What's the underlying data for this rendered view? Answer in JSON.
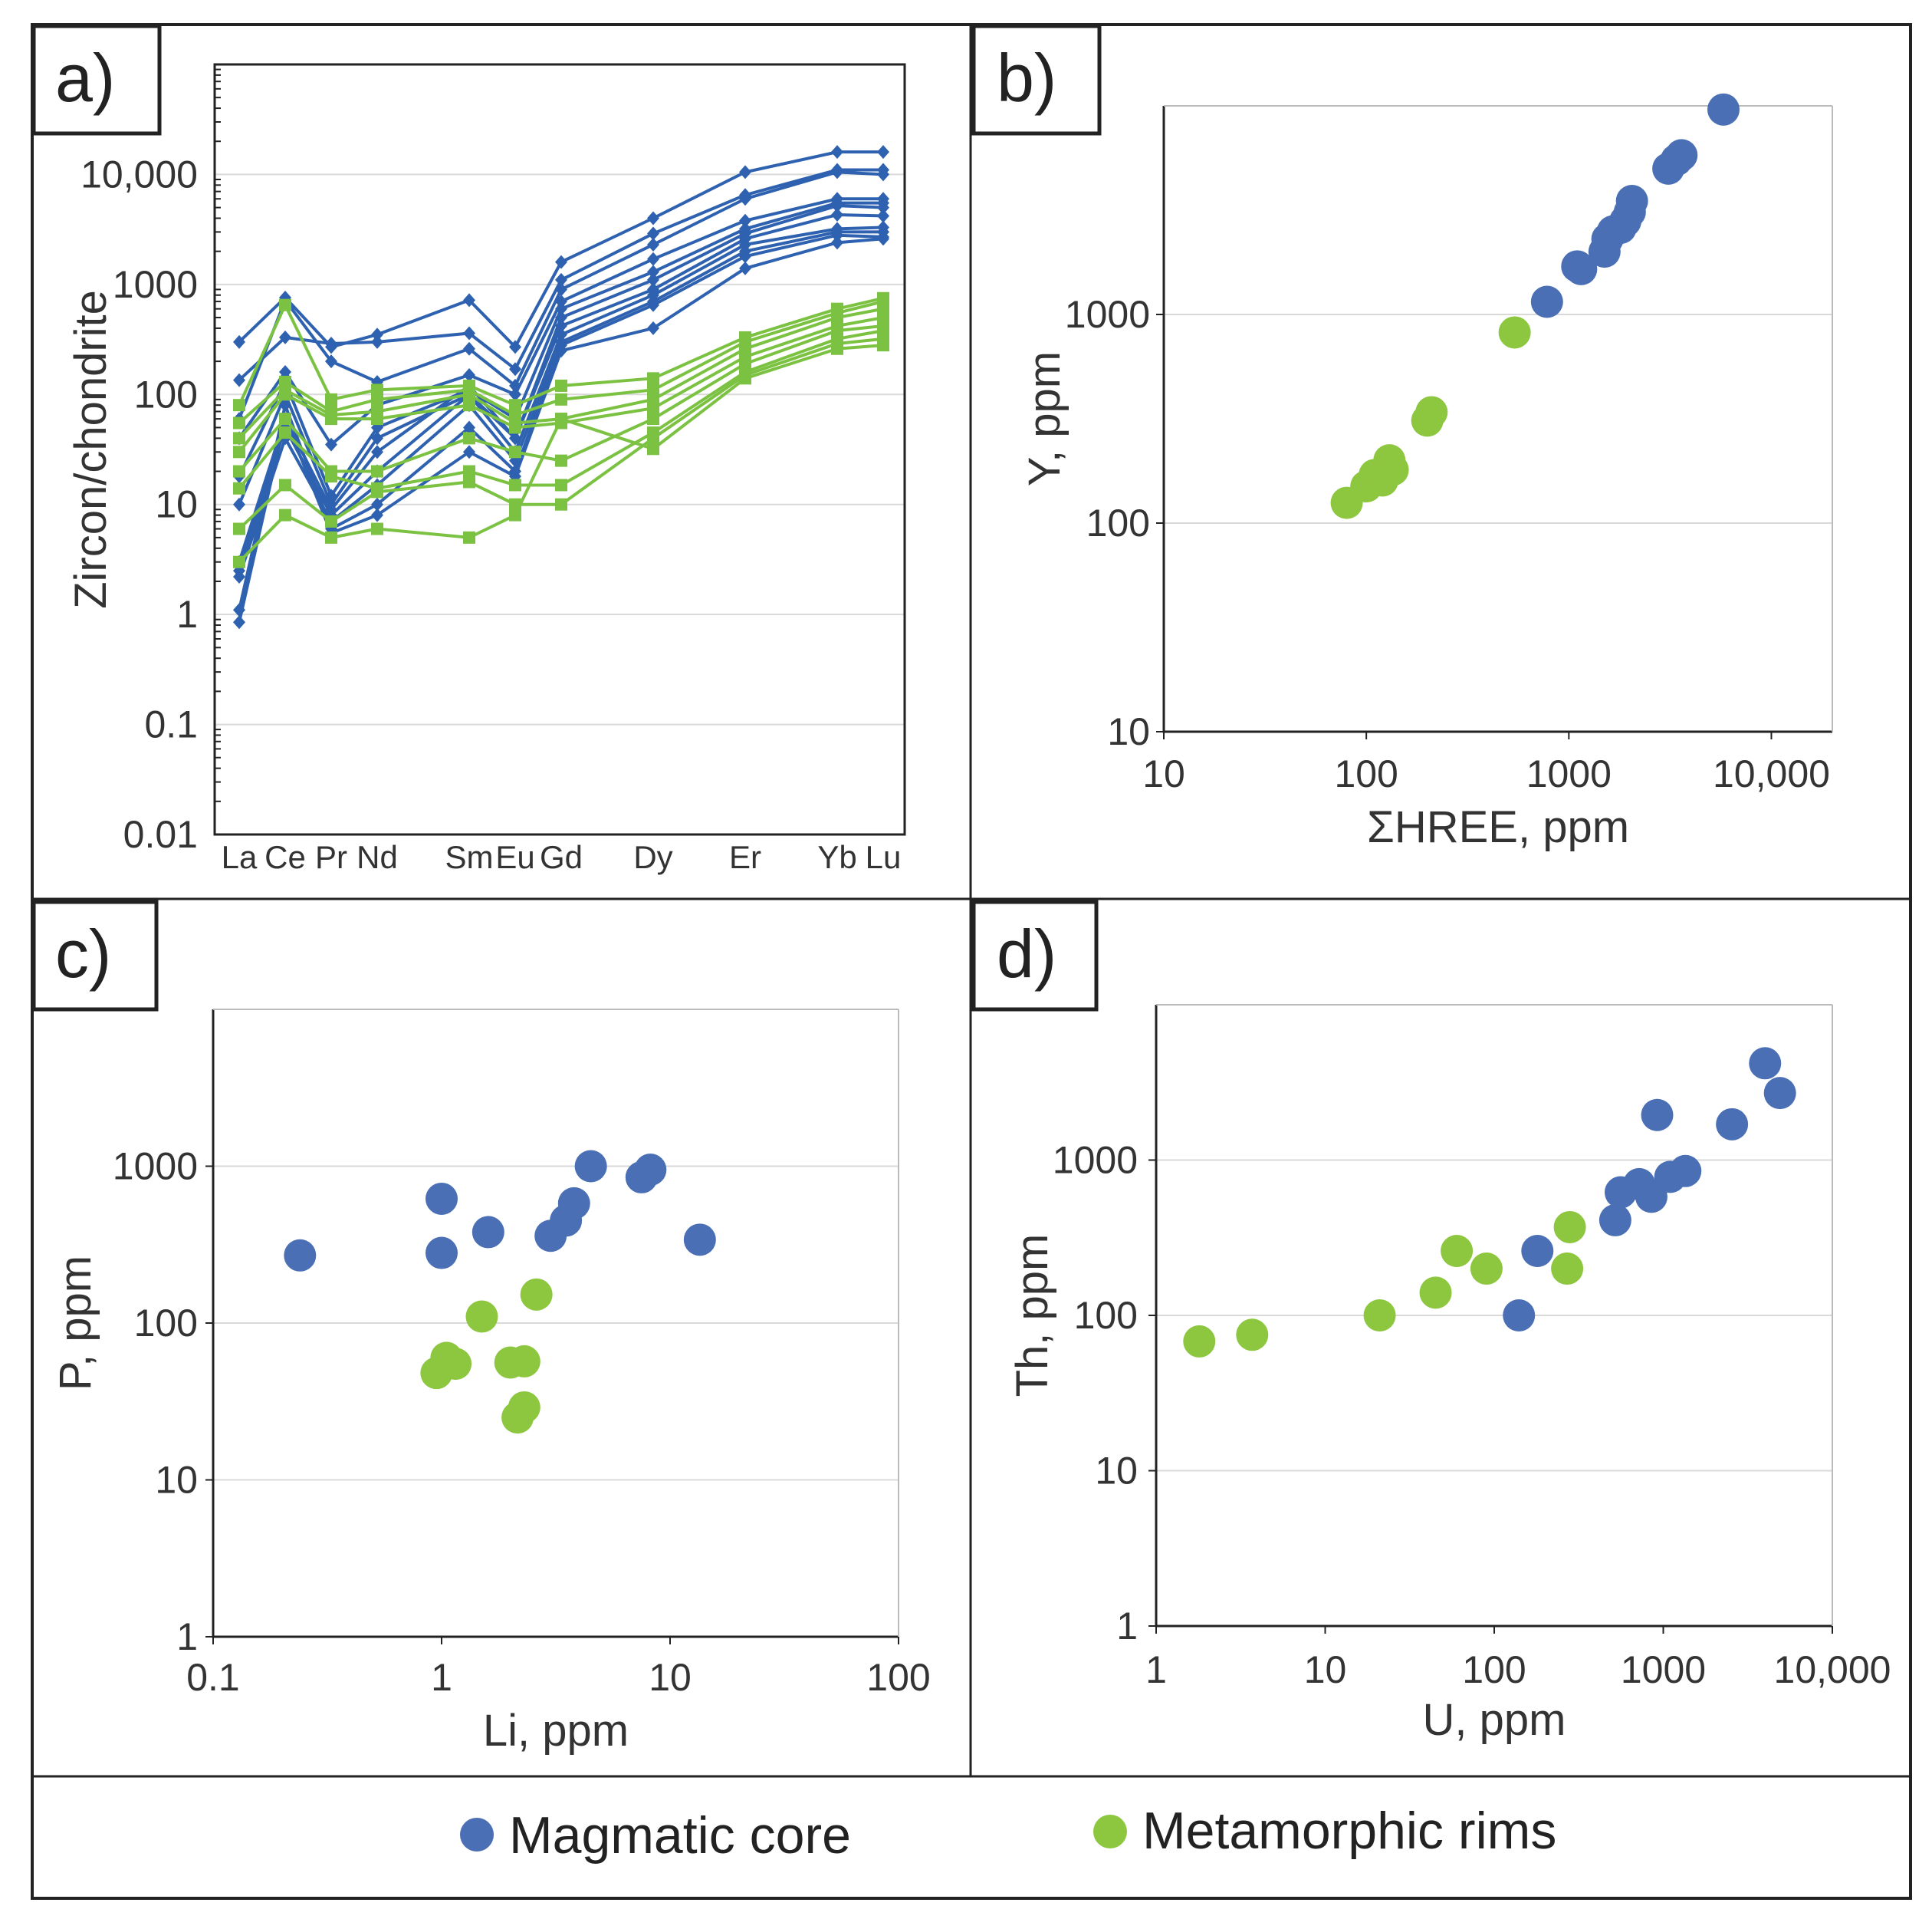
{
  "colors": {
    "magmatic": "#4a6fb5",
    "metamorphic": "#8dc63f",
    "magmatic_line": "#2e62b0",
    "metamorphic_line": "#7cc242"
  },
  "legend": {
    "magmatic": "Magmatic core",
    "metamorphic": "Metamorphic rims"
  },
  "chart_data": [
    {
      "id": "a",
      "panel_label": "a)",
      "type": "line",
      "ylabel": "Zircon/chondrite",
      "xlabel": "",
      "yscale": "log",
      "ylim": [
        0.01,
        100000
      ],
      "yticks": [
        0.01,
        0.1,
        1,
        10,
        100,
        1000,
        10000
      ],
      "ytick_labels": [
        "0.01",
        "0.1",
        "1",
        "10",
        "100",
        "1000",
        "10,000"
      ],
      "categories": [
        "La",
        "Ce",
        "Pr",
        "Nd",
        "Sm",
        "Eu",
        "Gd",
        "Dy",
        "Er",
        "Yb",
        "Lu"
      ],
      "category_positions": [
        0,
        1,
        2,
        3,
        5,
        6,
        7,
        9,
        11,
        13,
        14
      ],
      "series": [
        {
          "group": "magmatic",
          "values": [
            300,
            760,
            270,
            350,
            720,
            270,
            1600,
            4000,
            10500,
            16000,
            16000
          ]
        },
        {
          "group": "magmatic",
          "values": [
            135,
            330,
            290,
            300,
            360,
            170,
            1100,
            2900,
            6500,
            11000,
            11000
          ]
        },
        {
          "group": "magmatic",
          "values": [
            60,
            720,
            200,
            130,
            260,
            120,
            900,
            2300,
            6000,
            10500,
            10000
          ]
        },
        {
          "group": "magmatic",
          "values": [
            40,
            160,
            35,
            80,
            150,
            100,
            700,
            1700,
            3800,
            6000,
            6000
          ]
        },
        {
          "group": "magmatic",
          "values": [
            18,
            130,
            12,
            50,
            110,
            60,
            600,
            1300,
            3200,
            5500,
            5500
          ]
        },
        {
          "group": "magmatic",
          "values": [
            10,
            100,
            10,
            40,
            100,
            40,
            500,
            1100,
            2900,
            5200,
            5000
          ]
        },
        {
          "group": "magmatic",
          "values": [
            3,
            60,
            9,
            30,
            120,
            40,
            420,
            900,
            2600,
            4300,
            4200
          ]
        },
        {
          "group": "magmatic",
          "values": [
            2.5,
            50,
            8,
            20,
            100,
            30,
            350,
            800,
            2300,
            3200,
            3300
          ]
        },
        {
          "group": "magmatic",
          "values": [
            2.2,
            40,
            7,
            15,
            80,
            25,
            300,
            700,
            2000,
            3000,
            3000
          ]
        },
        {
          "group": "magmatic",
          "values": [
            1.1,
            80,
            6,
            10,
            50,
            20,
            280,
            650,
            1800,
            2800,
            2700
          ]
        },
        {
          "group": "magmatic",
          "values": [
            0.85,
            60,
            5.5,
            8,
            30,
            18,
            250,
            400,
            1400,
            2400,
            2600
          ]
        },
        {
          "group": "metamorphic",
          "values": [
            80,
            650,
            90,
            110,
            120,
            80,
            120,
            140,
            330,
            600,
            750
          ]
        },
        {
          "group": "metamorphic",
          "values": [
            55,
            130,
            70,
            90,
            110,
            65,
            90,
            110,
            300,
            550,
            700
          ]
        },
        {
          "group": "metamorphic",
          "values": [
            40,
            110,
            65,
            70,
            100,
            55,
            60,
            90,
            260,
            500,
            600
          ]
        },
        {
          "group": "metamorphic",
          "values": [
            30,
            100,
            60,
            60,
            80,
            50,
            55,
            75,
            220,
            420,
            500
          ]
        },
        {
          "group": "metamorphic",
          "values": [
            20,
            60,
            20,
            20,
            40,
            30,
            25,
            60,
            190,
            380,
            420
          ]
        },
        {
          "group": "metamorphic",
          "values": [
            14,
            45,
            18,
            14,
            20,
            15,
            15,
            45,
            160,
            320,
            380
          ]
        },
        {
          "group": "metamorphic",
          "values": [
            6,
            15,
            7,
            13,
            16,
            10,
            10,
            40,
            150,
            290,
            320
          ]
        },
        {
          "group": "metamorphic",
          "values": [
            3,
            8,
            5,
            6,
            5,
            8,
            60,
            32,
            140,
            260,
            280
          ]
        }
      ]
    },
    {
      "id": "b",
      "panel_label": "b)",
      "type": "scatter",
      "xlabel": "ΣHREE, ppm",
      "ylabel": "Y, ppm",
      "xscale": "log",
      "yscale": "log",
      "xlim": [
        10,
        20000
      ],
      "ylim": [
        10,
        10000
      ],
      "xticks": [
        10,
        100,
        1000,
        10000
      ],
      "xtick_labels": [
        "10",
        "100",
        "1000",
        "10,000"
      ],
      "yticks": [
        10,
        100,
        1000
      ],
      "ytick_labels": [
        "10",
        "100",
        "1000"
      ],
      "series": [
        {
          "group": "magmatic",
          "points": [
            [
              780,
              1150
            ],
            [
              1100,
              1700
            ],
            [
              1150,
              1650
            ],
            [
              1500,
              2000
            ],
            [
              1550,
              2300
            ],
            [
              1650,
              2500
            ],
            [
              1800,
              2600
            ],
            [
              1900,
              2800
            ],
            [
              2000,
              3100
            ],
            [
              2050,
              3500
            ],
            [
              3100,
              5000
            ],
            [
              3600,
              5800
            ],
            [
              3400,
              5500
            ],
            [
              5800,
              9600
            ]
          ]
        },
        {
          "group": "metamorphic",
          "points": [
            [
              80,
              125
            ],
            [
              100,
              150
            ],
            [
              110,
              170
            ],
            [
              130,
              200
            ],
            [
              135,
              180
            ],
            [
              120,
              160
            ],
            [
              200,
              310
            ],
            [
              210,
              340
            ],
            [
              540,
              820
            ]
          ]
        }
      ]
    },
    {
      "id": "c",
      "panel_label": "c)",
      "type": "scatter",
      "xlabel": "Li, ppm",
      "ylabel": "P, ppm",
      "xscale": "log",
      "yscale": "log",
      "xlim": [
        0.1,
        100
      ],
      "ylim": [
        1,
        10000
      ],
      "xticks": [
        0.1,
        1,
        10,
        100
      ],
      "xtick_labels": [
        "0.1",
        "1",
        "10",
        "100"
      ],
      "yticks": [
        1,
        10,
        100,
        1000
      ],
      "ytick_labels": [
        "1",
        "10",
        "100",
        "1000"
      ],
      "series": [
        {
          "group": "magmatic",
          "points": [
            [
              0.24,
              270
            ],
            [
              1.0,
              620
            ],
            [
              1.0,
              280
            ],
            [
              1.6,
              380
            ],
            [
              3.0,
              360
            ],
            [
              3.5,
              450
            ],
            [
              3.8,
              580
            ],
            [
              4.5,
              1000
            ],
            [
              7.5,
              850
            ],
            [
              8.2,
              950
            ],
            [
              13.5,
              340
            ]
          ]
        },
        {
          "group": "metamorphic",
          "points": [
            [
              0.95,
              48
            ],
            [
              1.05,
              60
            ],
            [
              1.15,
              55
            ],
            [
              1.5,
              110
            ],
            [
              2.0,
              56
            ],
            [
              2.3,
              57
            ],
            [
              2.15,
              25
            ],
            [
              2.3,
              29
            ],
            [
              2.6,
              152
            ]
          ]
        }
      ]
    },
    {
      "id": "d",
      "panel_label": "d)",
      "type": "scatter",
      "xlabel": "U, ppm",
      "ylabel": "Th, ppm",
      "xscale": "log",
      "yscale": "log",
      "xlim": [
        1,
        10000
      ],
      "ylim": [
        1,
        10000
      ],
      "xticks": [
        1,
        10,
        100,
        1000,
        10000
      ],
      "xtick_labels": [
        "1",
        "10",
        "100",
        "1000",
        "10,000"
      ],
      "yticks": [
        1,
        10,
        100,
        1000
      ],
      "ytick_labels": [
        "1",
        "10",
        "100",
        "1000"
      ],
      "series": [
        {
          "group": "magmatic",
          "points": [
            [
              140,
              100
            ],
            [
              180,
              260
            ],
            [
              520,
              410
            ],
            [
              560,
              620
            ],
            [
              720,
              700
            ],
            [
              850,
              580
            ],
            [
              920,
              1950
            ],
            [
              1100,
              780
            ],
            [
              1350,
              850
            ],
            [
              2550,
              1700
            ],
            [
              4000,
              4200
            ],
            [
              4900,
              2700
            ]
          ]
        },
        {
          "group": "metamorphic",
          "points": [
            [
              1.8,
              68
            ],
            [
              3.7,
              75
            ],
            [
              21,
              100
            ],
            [
              45,
              140
            ],
            [
              60,
              260
            ],
            [
              90,
              200
            ],
            [
              270,
              200
            ],
            [
              280,
              370
            ]
          ]
        }
      ]
    }
  ]
}
